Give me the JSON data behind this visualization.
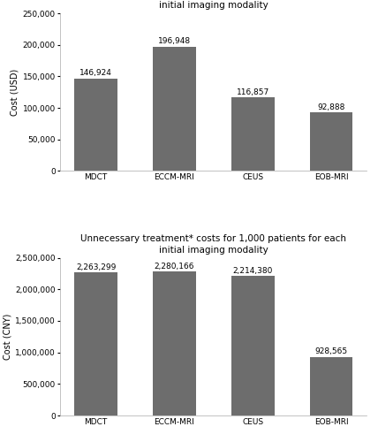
{
  "categories": [
    "MDCT",
    "ECCM-MRI",
    "CEUS",
    "EOB-MRI"
  ],
  "usd_values": [
    146924,
    196948,
    116857,
    92888
  ],
  "usd_labels": [
    "146,924",
    "196,948",
    "116,857",
    "92,888"
  ],
  "cny_values": [
    2263299,
    2280166,
    2214380,
    928565
  ],
  "cny_labels": [
    "2,263,299",
    "2,280,166",
    "2,214,380",
    "928,565"
  ],
  "bar_color": "#6d6d6d",
  "title": "Unnecessary treatment* costs for 1,000 patients for each\ninitial imaging modality",
  "usd_ylabel": "Cost (USD)",
  "cny_ylabel": "Cost (CNY)",
  "usd_ylim": [
    0,
    250000
  ],
  "cny_ylim": [
    0,
    2500000
  ],
  "usd_yticks": [
    0,
    50000,
    100000,
    150000,
    200000,
    250000
  ],
  "cny_yticks": [
    0,
    500000,
    1000000,
    1500000,
    2000000,
    2500000
  ],
  "background_color": "#ffffff",
  "label_fontsize": 6.5,
  "title_fontsize": 7.5,
  "axis_fontsize": 7,
  "tick_fontsize": 6.5
}
